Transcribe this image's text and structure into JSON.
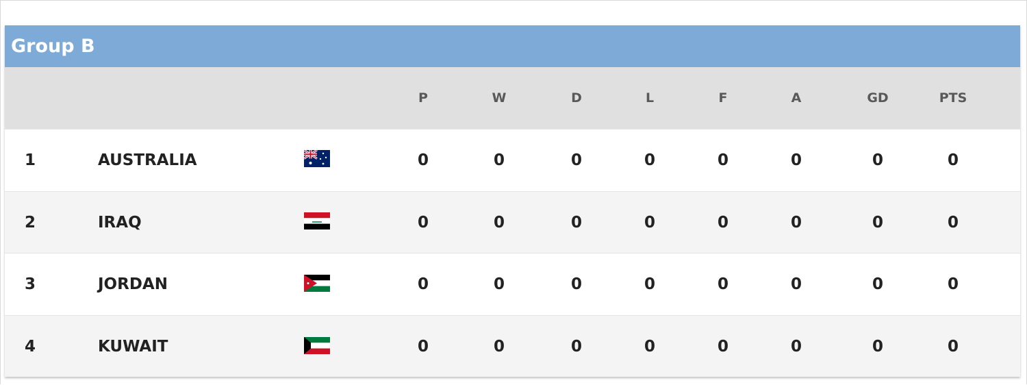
{
  "title": "Group B",
  "table": {
    "columns": [
      "P",
      "W",
      "D",
      "L",
      "F",
      "A",
      "GD",
      "PTS"
    ],
    "rows": [
      {
        "rank": 1,
        "team": "AUSTRALIA",
        "stats": [
          0,
          0,
          0,
          0,
          0,
          0,
          0,
          0
        ]
      },
      {
        "rank": 2,
        "team": "IRAQ",
        "stats": [
          0,
          0,
          0,
          0,
          0,
          0,
          0,
          0
        ]
      },
      {
        "rank": 3,
        "team": "JORDAN",
        "stats": [
          0,
          0,
          0,
          0,
          0,
          0,
          0,
          0
        ]
      },
      {
        "rank": 4,
        "team": "KUWAIT",
        "stats": [
          0,
          0,
          0,
          0,
          0,
          0,
          0,
          0
        ]
      }
    ]
  }
}
